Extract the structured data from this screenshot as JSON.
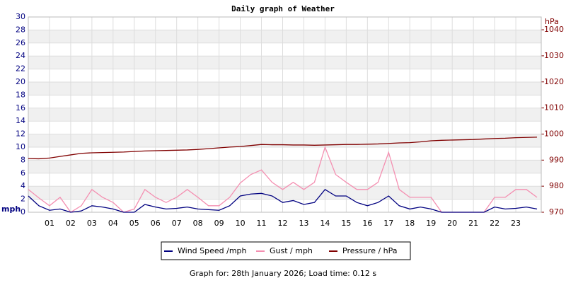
{
  "chart_data": {
    "type": "line",
    "title": "Daily graph of Weather",
    "y_label": "mph",
    "y2_label": "hPa",
    "x": [
      0,
      0.5,
      1,
      1.5,
      2,
      2.5,
      3,
      3.5,
      4,
      4.5,
      5,
      5.5,
      6,
      6.5,
      7,
      7.5,
      8,
      8.5,
      9,
      9.5,
      10,
      10.5,
      11,
      11.5,
      12,
      12.5,
      13,
      13.5,
      14,
      14.5,
      15,
      15.5,
      16,
      16.5,
      17,
      17.5,
      18,
      18.5,
      19,
      19.5,
      20,
      20.5,
      21,
      21.5,
      22,
      22.5,
      23,
      23.5,
      24
    ],
    "xlim": [
      0,
      24.2
    ],
    "xticks": [
      {
        "value": 1,
        "label": "01"
      },
      {
        "value": 2,
        "label": "02"
      },
      {
        "value": 3,
        "label": "03"
      },
      {
        "value": 4,
        "label": "04"
      },
      {
        "value": 5,
        "label": "05"
      },
      {
        "value": 6,
        "label": "06"
      },
      {
        "value": 7,
        "label": "07"
      },
      {
        "value": 8,
        "label": "08"
      },
      {
        "value": 9,
        "label": "09"
      },
      {
        "value": 10,
        "label": "10"
      },
      {
        "value": 11,
        "label": "11"
      },
      {
        "value": 12,
        "label": "12"
      },
      {
        "value": 13,
        "label": "13"
      },
      {
        "value": 14,
        "label": "14"
      },
      {
        "value": 15,
        "label": "15"
      },
      {
        "value": 16,
        "label": "16"
      },
      {
        "value": 17,
        "label": "17"
      },
      {
        "value": 18,
        "label": "18"
      },
      {
        "value": 19,
        "label": "19"
      },
      {
        "value": 20,
        "label": "20"
      },
      {
        "value": 21,
        "label": "21"
      },
      {
        "value": 22,
        "label": "22"
      },
      {
        "value": 23,
        "label": "23"
      }
    ],
    "ylim": [
      0,
      30
    ],
    "yticks": [
      0,
      2,
      4,
      6,
      8,
      10,
      12,
      14,
      16,
      18,
      20,
      22,
      24,
      26,
      28,
      30
    ],
    "y2lim": [
      970,
      1044.9
    ],
    "y2ticks": [
      970,
      980,
      990,
      1000,
      1010,
      1020,
      1030,
      1040
    ],
    "grid": true,
    "series": [
      {
        "name": "Gust / mph",
        "color": "#f48fb1",
        "values": [
          3.5,
          2.2,
          1,
          2.3,
          0,
          1,
          3.5,
          2.3,
          1.5,
          0,
          0.5,
          3.5,
          2.3,
          1.5,
          2.3,
          3.5,
          2.3,
          1,
          1,
          2.3,
          4.5,
          5.8,
          6.5,
          4.6,
          3.5,
          4.6,
          3.5,
          4.6,
          10,
          5.8,
          4.6,
          3.5,
          3.5,
          4.6,
          9.2,
          3.5,
          2.3,
          2.3,
          2.3,
          0,
          0,
          0,
          0,
          0,
          2.3,
          2.3,
          3.5,
          3.5,
          2.3
        ]
      },
      {
        "name": "Wind Speed /mph",
        "color": "#000080",
        "values": [
          2.5,
          1,
          0.3,
          0.5,
          0,
          0.2,
          1,
          0.8,
          0.5,
          0,
          0,
          1.2,
          0.8,
          0.5,
          0.6,
          0.8,
          0.5,
          0.4,
          0.3,
          1,
          2.5,
          2.8,
          2.9,
          2.5,
          1.5,
          1.8,
          1.2,
          1.5,
          3.5,
          2.5,
          2.5,
          1.5,
          1,
          1.5,
          2.5,
          1,
          0.5,
          0.8,
          0.5,
          0,
          0,
          0,
          0,
          0,
          0.8,
          0.5,
          0.6,
          0.8,
          0.5
        ]
      },
      {
        "name": "Pressure / hPa",
        "color": "#800000",
        "axis": "y2",
        "values": [
          990.6,
          990.5,
          990.8,
          991.4,
          992.0,
          992.6,
          992.8,
          992.9,
          993.0,
          993.1,
          993.3,
          993.5,
          993.6,
          993.7,
          993.8,
          993.9,
          994.1,
          994.4,
          994.7,
          995.0,
          995.2,
          995.6,
          996.0,
          995.9,
          995.9,
          995.8,
          995.8,
          995.7,
          995.8,
          995.9,
          996.0,
          996.0,
          996.1,
          996.2,
          996.4,
          996.6,
          996.7,
          997.0,
          997.4,
          997.6,
          997.7,
          997.8,
          997.9,
          998.1,
          998.3,
          998.4,
          998.6,
          998.7,
          998.8
        ]
      }
    ],
    "legend_order": [
      1,
      0,
      2
    ],
    "footer": "Graph for: 28th January 2026; Load time: 0.12 s"
  }
}
